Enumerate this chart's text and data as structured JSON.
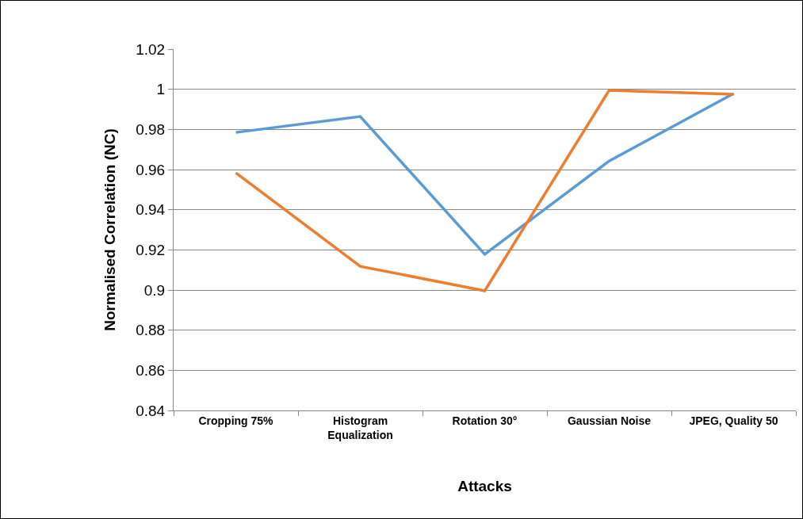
{
  "chart_data": {
    "type": "line",
    "xlabel": "Attacks",
    "ylabel": "Normalised Correlation (NC)",
    "categories": [
      "Cropping 75%",
      "Histogram Equalization",
      "Rotation 30°",
      "Gaussian Noise",
      "JPEG, Quality 50"
    ],
    "series": [
      {
        "color": "#5b9bd5",
        "values": [
          0.9785,
          0.9864,
          0.9178,
          0.9643,
          0.9979
        ]
      },
      {
        "color": "#ed7d31",
        "values": [
          0.9584,
          0.9118,
          0.8996,
          0.9995,
          0.9975
        ]
      }
    ],
    "ylim": [
      0.84,
      1.02
    ],
    "yticks": [
      0.84,
      0.86,
      0.88,
      0.9,
      0.92,
      0.94,
      0.96,
      0.98,
      1,
      1.02
    ],
    "grid": "y",
    "legend": false,
    "marker": "none",
    "line_style": "solid"
  }
}
